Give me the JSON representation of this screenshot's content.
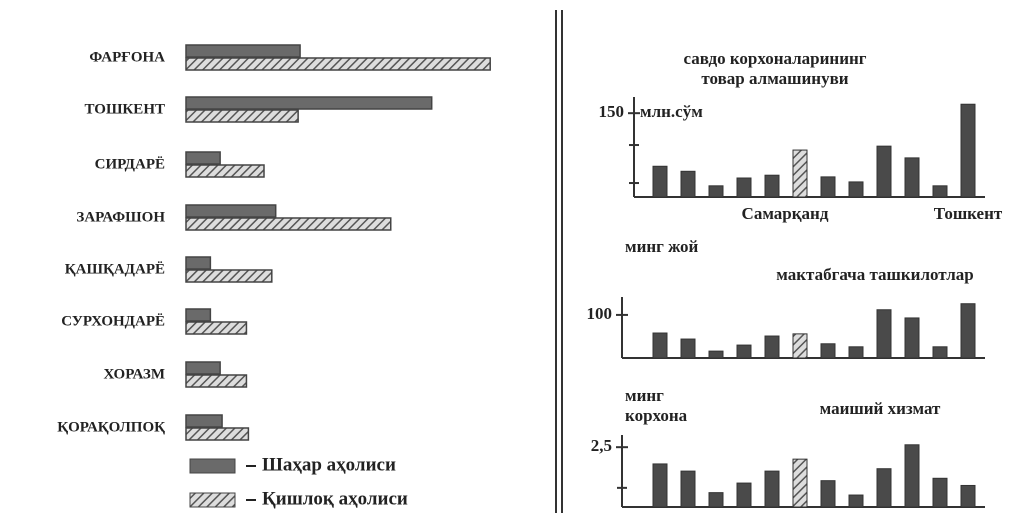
{
  "chart_data": [
    {
      "type": "hbar",
      "categories": [
        "ФАРҒОНА",
        "ТОШКЕНТ",
        "СИРДАРЁ",
        "ЗАРАФШОН",
        "ҚАШҚАДАРЁ",
        "СУРХОНДАРЁ",
        "ХОРАЗМ",
        "ҚОРАҚОЛПОҚ"
      ],
      "series": [
        {
          "name": "Шаҳар аҳолиси",
          "color": "#6a6a6a",
          "pattern": "solid",
          "values": [
            117,
            252,
            35,
            92,
            25,
            25,
            35,
            37
          ]
        },
        {
          "name": "Қишлоқ аҳолиси",
          "color": "#6a6a6a",
          "pattern": "hatch",
          "values": [
            312,
            115,
            80,
            210,
            88,
            62,
            62,
            64
          ]
        }
      ],
      "xlim": [
        0,
        320
      ]
    },
    {
      "type": "bar",
      "title": [
        "савдо корхоналарининг",
        "товар алмашинуви"
      ],
      "ylabel": [
        "млн.сўм"
      ],
      "categories": [
        null,
        null,
        null,
        null,
        null,
        "Самарқанд",
        null,
        null,
        null,
        null,
        null,
        "Тошкент"
      ],
      "values": [
        55,
        46,
        20,
        34,
        39,
        84,
        36,
        27,
        91,
        70,
        20,
        166
      ],
      "highlight": 5,
      "color": "#4a4a4a",
      "ylim": [
        0,
        170
      ],
      "yticks": [
        150
      ],
      "minor_yticks": [
        25,
        93
      ]
    },
    {
      "type": "bar",
      "title": [
        "мактабгача ташкилотлар"
      ],
      "ylabel": [
        "минг жой"
      ],
      "values": [
        58,
        44,
        16,
        30,
        51,
        56,
        33,
        26,
        112,
        93,
        26,
        126
      ],
      "highlight": 5,
      "color": "#4a4a4a",
      "ylim": [
        0,
        130
      ],
      "yticks": [
        100
      ]
    },
    {
      "type": "bar",
      "title": [
        "маиший хизмат"
      ],
      "ylabel": [
        "минг",
        "корхона"
      ],
      "values": [
        1.8,
        1.5,
        0.6,
        1.0,
        1.5,
        2.0,
        1.1,
        0.5,
        1.6,
        2.6,
        1.2,
        0.9
      ],
      "highlight": 5,
      "color": "#4a4a4a",
      "ylim": [
        0,
        2.8
      ],
      "yticks": [
        {
          "value": 2.5,
          "label": "2,5"
        }
      ],
      "minor_yticks": [
        0.8
      ]
    }
  ]
}
